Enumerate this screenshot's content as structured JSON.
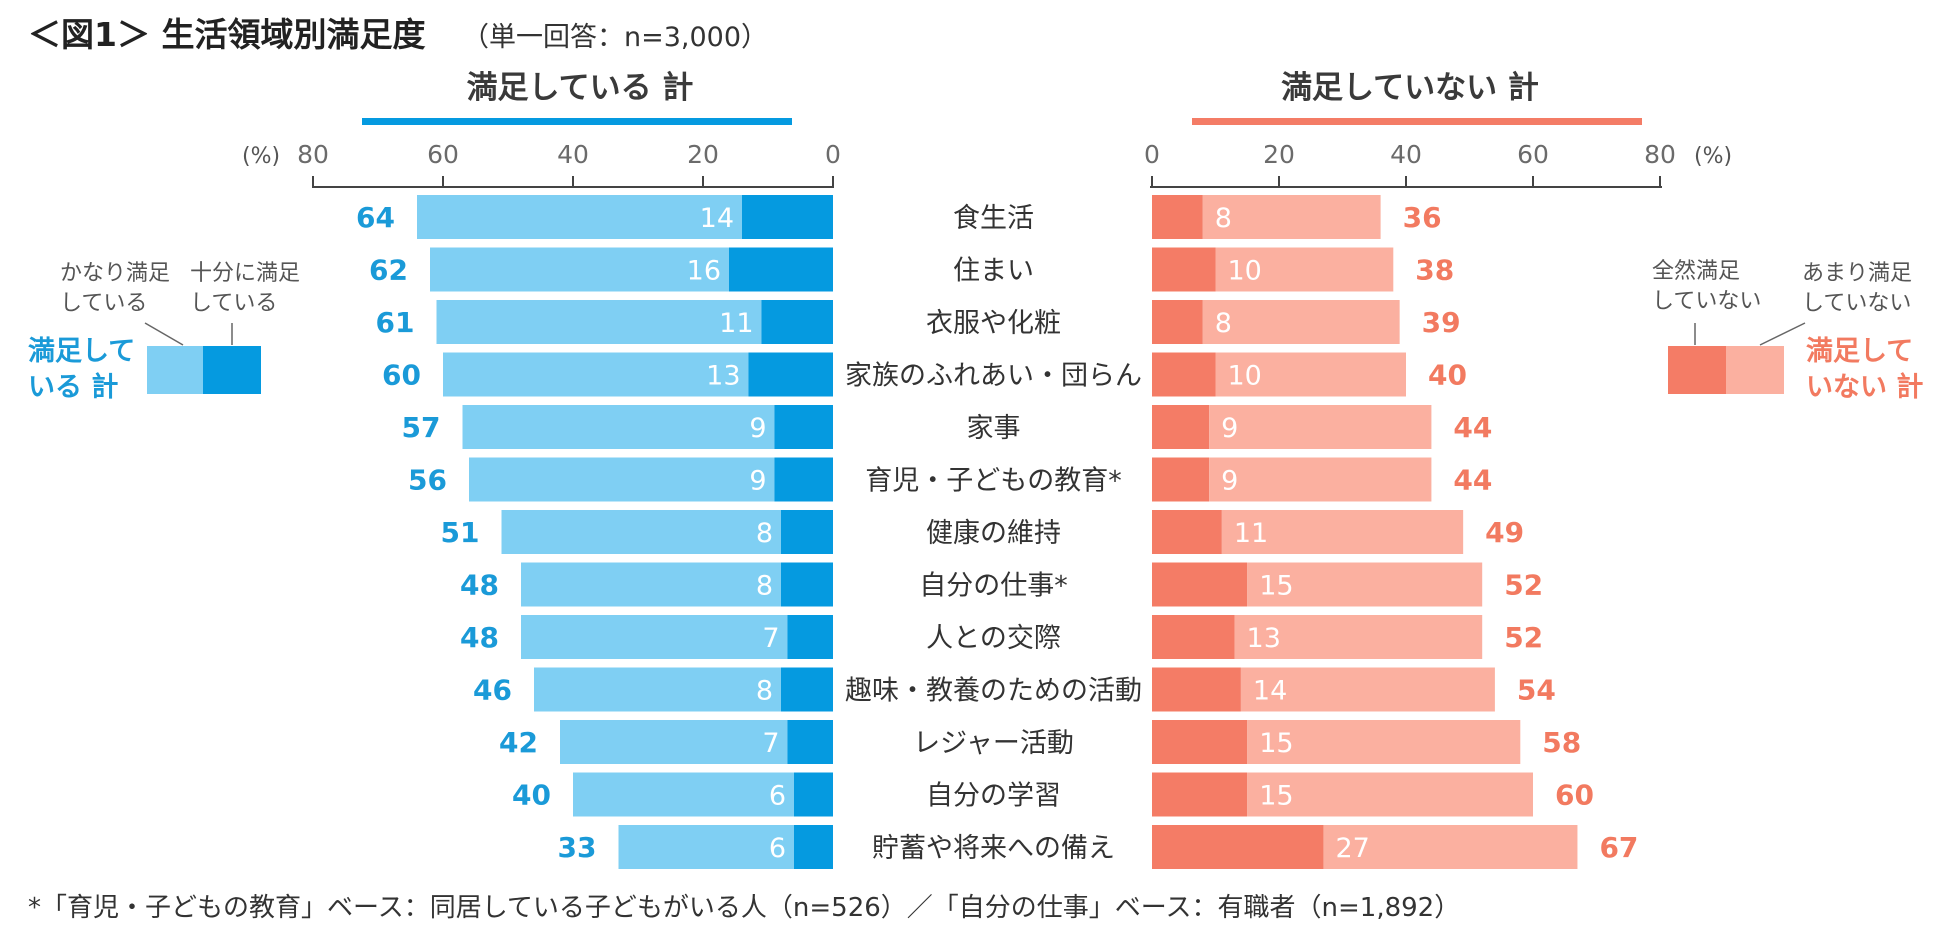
{
  "header": {
    "title": "＜図1＞ 生活領域別満足度",
    "subtitle": "（単一回答：n=3,000）"
  },
  "sections": {
    "left_title": "満足している 計",
    "right_title": "満足していない 計"
  },
  "axis": {
    "unit_label": "(%)"
  },
  "legend_left": {
    "items": [
      "かなり満足\nしている",
      "十分に満足\nしている"
    ],
    "total_label": "満足して\nいる 計"
  },
  "legend_right": {
    "items": [
      "全然満足\nしていない",
      "あまり満足\nしていない"
    ],
    "total_label": "満足して\nいない 計"
  },
  "footnote": "*「育児・子どもの教育」ベース：同居している子どもがいる人（n=526）／「自分の仕事」ベース：有職者（n=1,892）",
  "chart_data": {
    "type": "bar",
    "orientation": "horizontal-diverging",
    "title": "生活領域別満足度",
    "categories": [
      "食生活",
      "住まい",
      "衣服や化粧",
      "家族のふれあい・団らん",
      "家事",
      "育児・子どもの教育*",
      "健康の維持",
      "自分の仕事*",
      "人との交際",
      "趣味・教養のための活動",
      "レジャー活動",
      "自分の学習",
      "貯蓄や将来への備え"
    ],
    "left": {
      "total_name": "満足している 計",
      "xlim": [
        0,
        80
      ],
      "ticks": [
        80,
        60,
        40,
        20,
        0
      ],
      "series": [
        {
          "name": "十分に満足している",
          "color": "#059ae0",
          "values": [
            14,
            16,
            11,
            13,
            9,
            9,
            8,
            8,
            7,
            8,
            7,
            6,
            6
          ]
        },
        {
          "name": "かなり満足している",
          "color": "#7fcff3",
          "values": [
            50,
            46,
            50,
            47,
            48,
            47,
            43,
            40,
            41,
            38,
            35,
            34,
            27
          ]
        }
      ],
      "totals": [
        64,
        62,
        61,
        60,
        57,
        56,
        51,
        48,
        48,
        46,
        42,
        40,
        33
      ]
    },
    "right": {
      "total_name": "満足していない 計",
      "xlim": [
        0,
        80
      ],
      "ticks": [
        0,
        20,
        40,
        60,
        80
      ],
      "series": [
        {
          "name": "全然満足していない",
          "color": "#f47c66",
          "values": [
            8,
            10,
            8,
            10,
            9,
            9,
            11,
            15,
            13,
            14,
            15,
            15,
            27
          ]
        },
        {
          "name": "あまり満足していない",
          "color": "#fbb0a0",
          "values": [
            28,
            28,
            31,
            30,
            35,
            35,
            38,
            37,
            39,
            40,
            43,
            45,
            40
          ]
        }
      ],
      "totals": [
        36,
        38,
        39,
        40,
        44,
        44,
        49,
        52,
        52,
        54,
        58,
        60,
        67
      ]
    }
  }
}
